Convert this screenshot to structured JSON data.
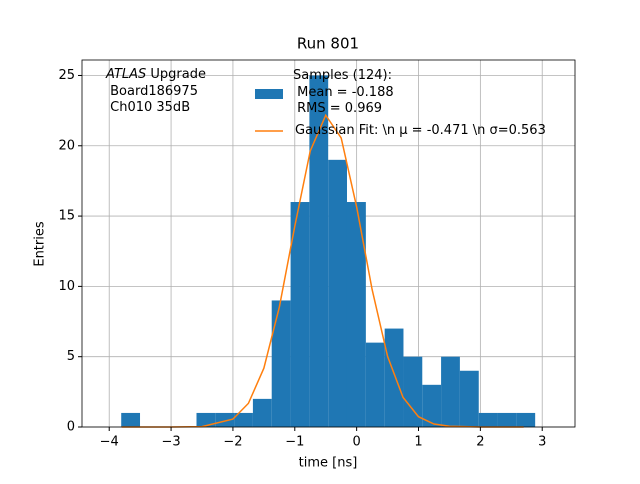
{
  "chart_data": {
    "type": "histogram",
    "title": "Run 801",
    "xlabel": "time [ns]",
    "ylabel": "Entries",
    "annotation_italic": "ATLAS",
    "annotation": " Upgrade\n Board186975\n Ch010 35dB",
    "bins": [
      -3.806,
      -3.502,
      -3.198,
      -2.893,
      -2.589,
      -2.285,
      -1.981,
      -1.677,
      -1.373,
      -1.068,
      -0.764,
      -0.46,
      -0.156,
      0.149,
      0.453,
      0.757,
      1.061,
      1.365,
      1.669,
      1.974,
      2.278,
      2.582,
      2.886
    ],
    "series": [
      {
        "name": "Samples (124):\n Mean = -0.188\n RMS = 0.969",
        "type": "histogram",
        "color": "#1f77b4",
        "values": [
          1,
          0,
          0,
          0,
          1,
          1,
          1,
          2,
          9,
          16,
          25,
          19,
          16,
          6,
          7,
          5,
          3,
          5,
          4,
          1,
          1,
          1
        ]
      },
      {
        "name": "Gaussian Fit: \\n μ = -0.471 \\n σ=0.563",
        "type": "line",
        "color": "#ff7f0e",
        "x": [
          -3.8,
          -3.0,
          -2.5,
          -2.0,
          -1.75,
          -1.5,
          -1.25,
          -1.0,
          -0.75,
          -0.5,
          -0.25,
          0,
          0.25,
          0.5,
          0.75,
          1.0,
          1.25,
          1.5,
          2.0,
          2.7
        ],
        "values": [
          0,
          0,
          0.03,
          0.56,
          1.68,
          4.18,
          8.52,
          14.28,
          19.63,
          22.17,
          20.56,
          15.65,
          9.78,
          5.02,
          2.11,
          0.73,
          0.21,
          0.05,
          0,
          0
        ]
      }
    ],
    "xlim": [
      -4.44,
      3.53
    ],
    "ylim": [
      0,
      26.1
    ],
    "xticks": [
      {
        "value": -4,
        "label": "−4"
      },
      {
        "value": -3,
        "label": "−3"
      },
      {
        "value": -2,
        "label": "−2"
      },
      {
        "value": -1,
        "label": "−1"
      },
      0,
      1,
      2,
      3
    ],
    "yticks": [
      0,
      5,
      10,
      15,
      20,
      25
    ],
    "grid": true
  }
}
